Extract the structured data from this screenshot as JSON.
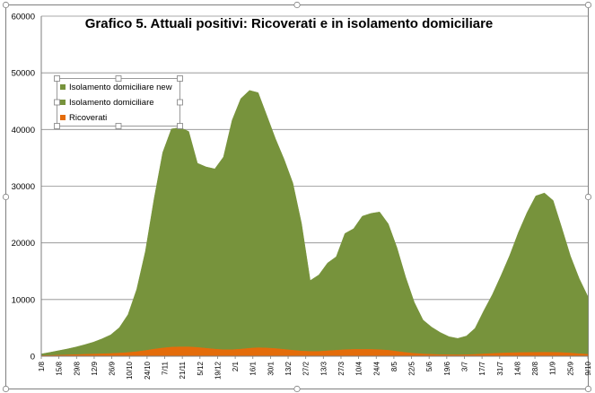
{
  "chart_data": {
    "type": "area",
    "title": "Grafico 5. Attuali positivi: Ricoverati e in isolamento domiciliare",
    "xlabel": "",
    "ylabel": "",
    "ylim": [
      0,
      60000
    ],
    "y_ticks": [
      "0",
      "10000",
      "20000",
      "30000",
      "40000",
      "50000",
      "60000"
    ],
    "x_tick_labels": [
      "1/8",
      "15/8",
      "29/8",
      "12/9",
      "26/9",
      "10/10",
      "24/10",
      "7/11",
      "21/11",
      "5/12",
      "19/12",
      "2/1",
      "16/1",
      "30/1",
      "13/2",
      "27/2",
      "13/3",
      "27/3",
      "10/4",
      "24/4",
      "8/5",
      "22/5",
      "5/6",
      "19/6",
      "3/7",
      "17/7",
      "31/7",
      "14/8",
      "28/8",
      "11/9",
      "25/9",
      "9/10"
    ],
    "grid": true,
    "stacked": true,
    "legend": {
      "position": "top-left",
      "entries": [
        {
          "label": "Isolamento domiciliare new",
          "color": "#77933c"
        },
        {
          "label": "Isolamento domiciliare",
          "color": "#77933c"
        },
        {
          "label": "Ricoverati",
          "color": "#e46c0a"
        }
      ]
    },
    "series": [
      {
        "name": "Ricoverati",
        "color": "#e46c0a",
        "values": [
          100,
          130,
          180,
          230,
          280,
          330,
          380,
          420,
          470,
          550,
          650,
          800,
          1000,
          1250,
          1450,
          1600,
          1650,
          1650,
          1550,
          1400,
          1250,
          1150,
          1150,
          1250,
          1400,
          1500,
          1450,
          1350,
          1200,
          1050,
          900,
          850,
          850,
          950,
          1050,
          1150,
          1200,
          1200,
          1200,
          1150,
          1050,
          850,
          650,
          500,
          400,
          330,
          280,
          250,
          240,
          260,
          320,
          400,
          480,
          550,
          600,
          640,
          660,
          680,
          700,
          680,
          640,
          560,
          430,
          350
        ]
      },
      {
        "name": "Isolamento domiciliare",
        "color": "#77933c",
        "values": [
          300,
          550,
          800,
          1050,
          1350,
          1700,
          2100,
          2650,
          3300,
          4500,
          6700,
          11000,
          17500,
          26500,
          34500,
          38500,
          38700,
          38000,
          32500,
          32000,
          31800,
          34000,
          40500,
          44200,
          45500,
          45000,
          41000,
          37000,
          33500,
          29500,
          22500,
          12500,
          13500,
          15500,
          16500,
          20500,
          21300,
          23500,
          24000,
          24300,
          22300,
          18300,
          13300,
          9000,
          6000,
          4800,
          3900,
          3200,
          2900,
          3300,
          4600,
          7600,
          10400,
          13700,
          17200,
          21200,
          24700,
          27600,
          28100,
          26800,
          22000,
          17100,
          13300,
          10200
        ]
      }
    ]
  }
}
